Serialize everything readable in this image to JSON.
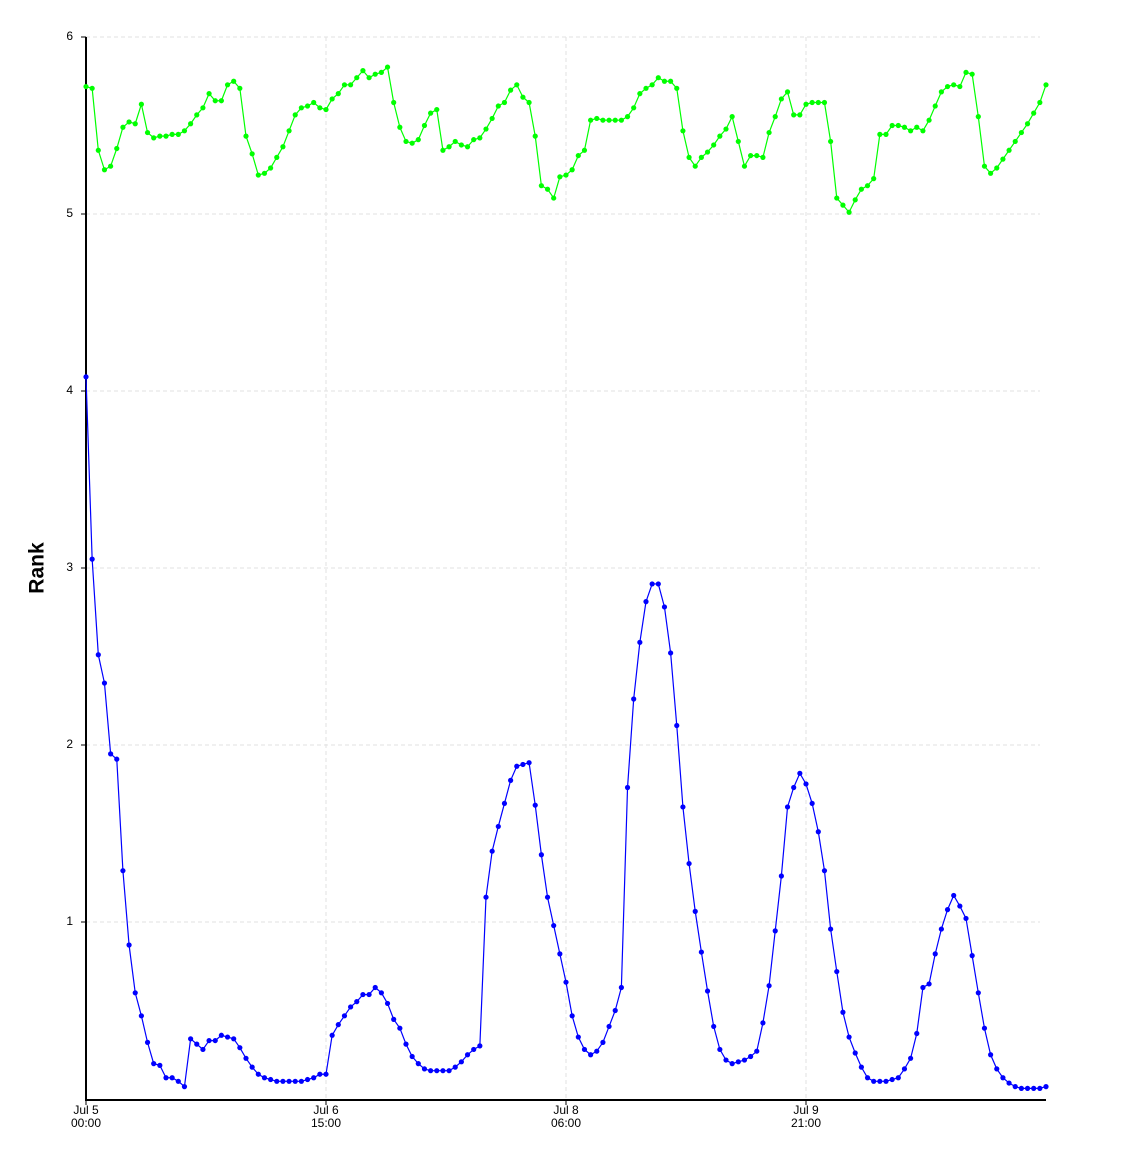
{
  "chart_data": {
    "type": "line",
    "ylabel": "Rank",
    "x": [
      "Jul 5 00:00",
      "Jul 5 01:00",
      "Jul 5 02:00",
      "Jul 5 03:00",
      "Jul 5 04:00",
      "Jul 5 05:00",
      "Jul 5 06:00",
      "Jul 5 07:00",
      "Jul 5 08:00",
      "Jul 5 09:00",
      "Jul 5 10:00",
      "Jul 5 11:00",
      "Jul 5 12:00",
      "Jul 5 13:00",
      "Jul 5 14:00",
      "Jul 5 15:00",
      "Jul 5 16:00",
      "Jul 5 17:00",
      "Jul 5 18:00",
      "Jul 5 19:00",
      "Jul 5 20:00",
      "Jul 5 21:00",
      "Jul 5 22:00",
      "Jul 5 23:00",
      "Jul 6 00:00",
      "Jul 6 01:00",
      "Jul 6 02:00",
      "Jul 6 03:00",
      "Jul 6 04:00",
      "Jul 6 05:00",
      "Jul 6 06:00",
      "Jul 6 07:00",
      "Jul 6 08:00",
      "Jul 6 09:00",
      "Jul 6 10:00",
      "Jul 6 11:00",
      "Jul 6 12:00",
      "Jul 6 13:00",
      "Jul 6 14:00",
      "Jul 6 15:00",
      "Jul 6 16:00",
      "Jul 6 17:00",
      "Jul 6 18:00",
      "Jul 6 19:00",
      "Jul 6 20:00",
      "Jul 6 21:00",
      "Jul 6 22:00",
      "Jul 6 23:00",
      "Jul 7 00:00",
      "Jul 7 01:00",
      "Jul 7 02:00",
      "Jul 7 03:00",
      "Jul 7 04:00",
      "Jul 7 05:00",
      "Jul 7 06:00",
      "Jul 7 07:00",
      "Jul 7 08:00",
      "Jul 7 09:00",
      "Jul 7 10:00",
      "Jul 7 11:00",
      "Jul 7 12:00",
      "Jul 7 13:00",
      "Jul 7 14:00",
      "Jul 7 15:00",
      "Jul 7 16:00",
      "Jul 7 17:00",
      "Jul 7 18:00",
      "Jul 7 19:00",
      "Jul 7 20:00",
      "Jul 7 21:00",
      "Jul 7 22:00",
      "Jul 7 23:00",
      "Jul 8 00:00",
      "Jul 8 01:00",
      "Jul 8 02:00",
      "Jul 8 03:00",
      "Jul 8 04:00",
      "Jul 8 05:00",
      "Jul 8 06:00",
      "Jul 8 07:00",
      "Jul 8 08:00",
      "Jul 8 09:00",
      "Jul 8 10:00",
      "Jul 8 11:00",
      "Jul 8 12:00",
      "Jul 8 13:00",
      "Jul 8 14:00",
      "Jul 8 15:00",
      "Jul 8 16:00",
      "Jul 8 17:00",
      "Jul 8 18:00",
      "Jul 8 19:00",
      "Jul 8 20:00",
      "Jul 8 21:00",
      "Jul 8 22:00",
      "Jul 8 23:00",
      "Jul 9 00:00",
      "Jul 9 01:00",
      "Jul 9 02:00",
      "Jul 9 03:00",
      "Jul 9 04:00",
      "Jul 9 05:00",
      "Jul 9 06:00",
      "Jul 9 07:00",
      "Jul 9 08:00",
      "Jul 9 09:00",
      "Jul 9 10:00",
      "Jul 9 11:00",
      "Jul 9 12:00",
      "Jul 9 13:00",
      "Jul 9 14:00",
      "Jul 9 15:00",
      "Jul 9 16:00",
      "Jul 9 17:00",
      "Jul 9 18:00",
      "Jul 9 19:00",
      "Jul 9 20:00",
      "Jul 9 21:00",
      "Jul 9 22:00",
      "Jul 9 23:00",
      "Jul 10 00:00",
      "Jul 10 01:00",
      "Jul 10 02:00",
      "Jul 10 03:00",
      "Jul 10 04:00",
      "Jul 10 05:00",
      "Jul 10 06:00",
      "Jul 10 07:00",
      "Jul 10 08:00",
      "Jul 10 09:00",
      "Jul 10 10:00",
      "Jul 10 11:00",
      "Jul 10 12:00",
      "Jul 10 13:00",
      "Jul 10 14:00",
      "Jul 10 15:00",
      "Jul 10 16:00",
      "Jul 10 17:00",
      "Jul 10 18:00",
      "Jul 10 19:00",
      "Jul 10 20:00",
      "Jul 10 21:00",
      "Jul 10 22:00",
      "Jul 10 23:00",
      "Jul 11 00:00",
      "Jul 11 01:00",
      "Jul 11 02:00",
      "Jul 11 03:00",
      "Jul 11 04:00",
      "Jul 11 05:00",
      "Jul 11 06:00",
      "Jul 11 07:00",
      "Jul 11 08:00",
      "Jul 11 09:00",
      "Jul 11 10:00",
      "Jul 11 11:00",
      "Jul 11 12:00"
    ],
    "series": [
      {
        "color": "#00ff00",
        "values": [
          5.72,
          5.71,
          5.36,
          5.25,
          5.27,
          5.37,
          5.49,
          5.52,
          5.51,
          5.62,
          5.46,
          5.43,
          5.44,
          5.44,
          5.45,
          5.45,
          5.47,
          5.51,
          5.56,
          5.6,
          5.68,
          5.64,
          5.64,
          5.73,
          5.75,
          5.71,
          5.44,
          5.34,
          5.22,
          5.23,
          5.26,
          5.32,
          5.38,
          5.47,
          5.56,
          5.6,
          5.61,
          5.63,
          5.6,
          5.59,
          5.65,
          5.68,
          5.73,
          5.73,
          5.77,
          5.81,
          5.77,
          5.79,
          5.8,
          5.83,
          5.63,
          5.49,
          5.41,
          5.4,
          5.42,
          5.5,
          5.57,
          5.59,
          5.36,
          5.38,
          5.41,
          5.39,
          5.38,
          5.42,
          5.43,
          5.48,
          5.54,
          5.61,
          5.63,
          5.7,
          5.73,
          5.66,
          5.63,
          5.44,
          5.16,
          5.14,
          5.09,
          5.21,
          5.22,
          5.25,
          5.33,
          5.36,
          5.53,
          5.54,
          5.53,
          5.53,
          5.53,
          5.53,
          5.55,
          5.6,
          5.68,
          5.71,
          5.73,
          5.77,
          5.75,
          5.75,
          5.71,
          5.47,
          5.32,
          5.27,
          5.32,
          5.35,
          5.39,
          5.44,
          5.48,
          5.55,
          5.41,
          5.27,
          5.33,
          5.33,
          5.32,
          5.46,
          5.55,
          5.65,
          5.69,
          5.56,
          5.56,
          5.62,
          5.63,
          5.63,
          5.63,
          5.41,
          5.09,
          5.05,
          5.01,
          5.08,
          5.14,
          5.16,
          5.2,
          5.45,
          5.45,
          5.5,
          5.5,
          5.49,
          5.47,
          5.49,
          5.47,
          5.53,
          5.61,
          5.69,
          5.72,
          5.73,
          5.72,
          5.8,
          5.79,
          5.55,
          5.27,
          5.23,
          5.26,
          5.31,
          5.36,
          5.41,
          5.46,
          5.51,
          5.57,
          5.63,
          5.73
        ]
      },
      {
        "color": "#0000ff",
        "values": [
          4.08,
          3.05,
          2.51,
          2.35,
          1.95,
          1.92,
          1.29,
          0.87,
          0.6,
          0.47,
          0.32,
          0.2,
          0.19,
          0.12,
          0.12,
          0.1,
          0.07,
          0.34,
          0.31,
          0.28,
          0.33,
          0.33,
          0.36,
          0.35,
          0.34,
          0.29,
          0.23,
          0.18,
          0.14,
          0.12,
          0.11,
          0.1,
          0.1,
          0.1,
          0.1,
          0.1,
          0.11,
          0.12,
          0.14,
          0.14,
          0.36,
          0.42,
          0.47,
          0.52,
          0.55,
          0.59,
          0.59,
          0.63,
          0.6,
          0.54,
          0.45,
          0.4,
          0.31,
          0.24,
          0.2,
          0.17,
          0.16,
          0.16,
          0.16,
          0.16,
          0.18,
          0.21,
          0.25,
          0.28,
          0.3,
          1.14,
          1.4,
          1.54,
          1.67,
          1.8,
          1.88,
          1.89,
          1.9,
          1.66,
          1.38,
          1.14,
          0.98,
          0.82,
          0.66,
          0.47,
          0.35,
          0.28,
          0.25,
          0.27,
          0.32,
          0.41,
          0.5,
          0.63,
          1.76,
          2.26,
          2.58,
          2.81,
          2.91,
          2.91,
          2.78,
          2.52,
          2.11,
          1.65,
          1.33,
          1.06,
          0.83,
          0.61,
          0.41,
          0.28,
          0.22,
          0.2,
          0.21,
          0.22,
          0.24,
          0.27,
          0.43,
          0.64,
          0.95,
          1.26,
          1.65,
          1.76,
          1.84,
          1.78,
          1.67,
          1.51,
          1.29,
          0.96,
          0.72,
          0.49,
          0.35,
          0.26,
          0.18,
          0.12,
          0.1,
          0.1,
          0.1,
          0.11,
          0.12,
          0.17,
          0.23,
          0.37,
          0.63,
          0.65,
          0.82,
          0.96,
          1.07,
          1.15,
          1.09,
          1.02,
          0.81,
          0.6,
          0.4,
          0.25,
          0.17,
          0.12,
          0.09,
          0.07,
          0.06,
          0.06,
          0.06,
          0.06,
          0.07
        ]
      }
    ],
    "xlim": [
      "Jul 5 00:00",
      "Jul 11 12:00"
    ],
    "xticks": [
      "Jul 5 00:00",
      "Jul 6 15:00",
      "Jul 8 06:00",
      "Jul 9 21:00"
    ],
    "ylim": [
      0,
      6
    ],
    "yticks": [
      1,
      2,
      3,
      4,
      5,
      6
    ],
    "grid": true
  }
}
